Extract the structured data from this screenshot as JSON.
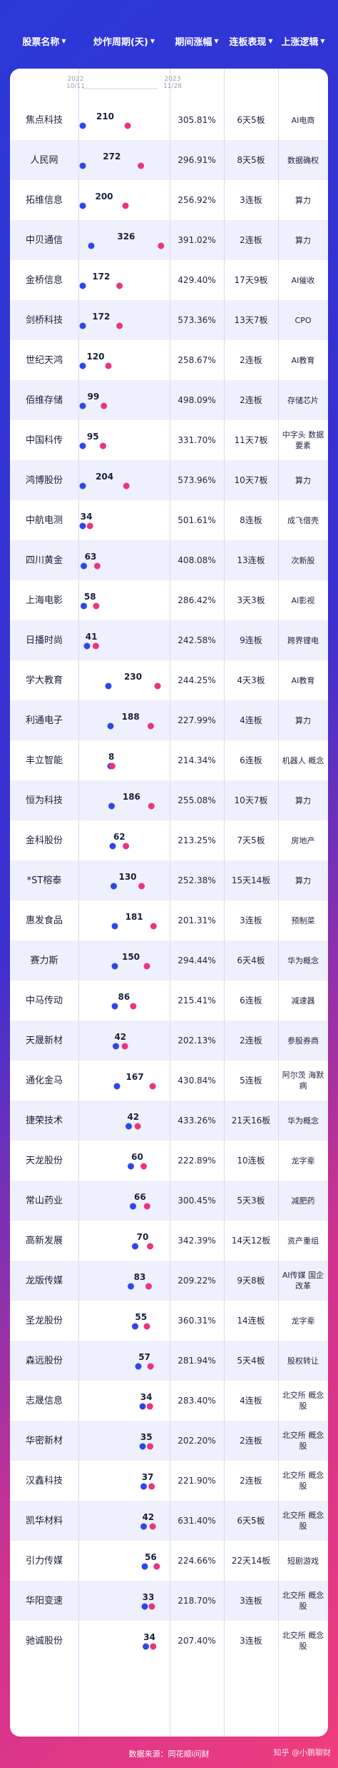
{
  "header": {
    "col_name": "股票名称",
    "col_period": "炒作周期(天)",
    "col_gain": "期间涨幅",
    "col_board": "连板表现",
    "col_logic": "上涨逻辑",
    "sort_icon": "triangle-down-icon"
  },
  "year_marks": {
    "start_year": "2022",
    "start_date": "10/11",
    "end_year": "2023",
    "end_date": "11/28"
  },
  "footer": {
    "source": "数据来源：同花顺i问财",
    "watermark": "知乎 @小鹏聊财"
  },
  "colors": {
    "start_dot": "#2f46e8",
    "end_dot": "#e8357d",
    "bar_start": "#3a4be6",
    "bar_end": "#e43a80"
  },
  "chart_data": {
    "type": "table",
    "title": "",
    "columns": [
      "股票名称",
      "炒作周期(天)",
      "期间涨幅",
      "连板表现",
      "上涨逻辑"
    ],
    "rows": [
      {
        "name": "焦点科技",
        "days": 210,
        "start": 0,
        "gain": "305.81%",
        "board": "6天5板",
        "logic": "AI电商"
      },
      {
        "name": "人民网",
        "days": 272,
        "start": 0,
        "gain": "296.91%",
        "board": "8天5板",
        "logic": "数据确权"
      },
      {
        "name": "拓维信息",
        "days": 200,
        "start": 0,
        "gain": "256.92%",
        "board": "3连板",
        "logic": "算力"
      },
      {
        "name": "中贝通信",
        "days": 326,
        "start": 40,
        "gain": "391.02%",
        "board": "2连板",
        "logic": "算力"
      },
      {
        "name": "金桥信息",
        "days": 172,
        "start": 0,
        "gain": "429.40%",
        "board": "17天9板",
        "logic": "AI催收"
      },
      {
        "name": "剑桥科技",
        "days": 172,
        "start": 0,
        "gain": "573.36%",
        "board": "13天7板",
        "logic": "CPO"
      },
      {
        "name": "世纪天鸿",
        "days": 120,
        "start": 0,
        "gain": "258.67%",
        "board": "2连板",
        "logic": "AI教育"
      },
      {
        "name": "佰维存储",
        "days": 99,
        "start": 0,
        "gain": "498.09%",
        "board": "2连板",
        "logic": "存储芯片"
      },
      {
        "name": "中国科传",
        "days": 95,
        "start": 0,
        "gain": "331.70%",
        "board": "11天7板",
        "logic": "中字头 数据要素"
      },
      {
        "name": "鸿博股份",
        "days": 204,
        "start": 0,
        "gain": "573.96%",
        "board": "10天7板",
        "logic": "算力"
      },
      {
        "name": "中航电测",
        "days": 34,
        "start": 0,
        "gain": "501.61%",
        "board": "8连板",
        "logic": "成飞借壳"
      },
      {
        "name": "四川黄金",
        "days": 63,
        "start": 5,
        "gain": "408.08%",
        "board": "13连板",
        "logic": "次新股"
      },
      {
        "name": "上海电影",
        "days": 58,
        "start": 5,
        "gain": "286.42%",
        "board": "3天3板",
        "logic": "AI影视"
      },
      {
        "name": "日播时尚",
        "days": 41,
        "start": 20,
        "gain": "242.58%",
        "board": "9连板",
        "logic": "跨界锂电"
      },
      {
        "name": "学大教育",
        "days": 230,
        "start": 120,
        "gain": "244.25%",
        "board": "4天3板",
        "logic": "AI教育"
      },
      {
        "name": "利通电子",
        "days": 188,
        "start": 130,
        "gain": "227.99%",
        "board": "4连板",
        "logic": "算力"
      },
      {
        "name": "丰立智能",
        "days": 8,
        "start": 130,
        "gain": "214.34%",
        "board": "6连板",
        "logic": "机器人 概念"
      },
      {
        "name": "恒为科技",
        "days": 186,
        "start": 135,
        "gain": "255.08%",
        "board": "10天7板",
        "logic": "算力"
      },
      {
        "name": "金科股份",
        "days": 62,
        "start": 140,
        "gain": "213.25%",
        "board": "7天5板",
        "logic": "房地产"
      },
      {
        "name": "*ST榕泰",
        "days": 130,
        "start": 145,
        "gain": "252.38%",
        "board": "15天14板",
        "logic": "算力"
      },
      {
        "name": "惠发食品",
        "days": 181,
        "start": 150,
        "gain": "201.31%",
        "board": "3连板",
        "logic": "预制菜"
      },
      {
        "name": "赛力斯",
        "days": 150,
        "start": 150,
        "gain": "294.44%",
        "board": "6天4板",
        "logic": "华为概念"
      },
      {
        "name": "中马传动",
        "days": 86,
        "start": 150,
        "gain": "215.41%",
        "board": "6连板",
        "logic": "减速器"
      },
      {
        "name": "天晟新材",
        "days": 42,
        "start": 155,
        "gain": "202.13%",
        "board": "2连板",
        "logic": "参股券商"
      },
      {
        "name": "通化金马",
        "days": 167,
        "start": 160,
        "gain": "430.84%",
        "board": "5连板",
        "logic": "阿尔茨 海默病"
      },
      {
        "name": "捷荣技术",
        "days": 42,
        "start": 215,
        "gain": "433.26%",
        "board": "21天16板",
        "logic": "华为概念"
      },
      {
        "name": "天龙股份",
        "days": 60,
        "start": 225,
        "gain": "222.89%",
        "board": "10连板",
        "logic": "龙字辈"
      },
      {
        "name": "常山药业",
        "days": 66,
        "start": 235,
        "gain": "300.45%",
        "board": "5天3板",
        "logic": "减肥药"
      },
      {
        "name": "高新发展",
        "days": 70,
        "start": 245,
        "gain": "342.39%",
        "board": "14天12板",
        "logic": "资产重组"
      },
      {
        "name": "龙版传媒",
        "days": 83,
        "start": 225,
        "gain": "209.22%",
        "board": "9天8板",
        "logic": "AI传媒 国企改革"
      },
      {
        "name": "圣龙股份",
        "days": 55,
        "start": 245,
        "gain": "360.31%",
        "board": "14连板",
        "logic": "龙字辈"
      },
      {
        "name": "森远股份",
        "days": 57,
        "start": 260,
        "gain": "281.94%",
        "board": "5天4板",
        "logic": "股权转让"
      },
      {
        "name": "志晟信息",
        "days": 34,
        "start": 280,
        "gain": "283.40%",
        "board": "4连板",
        "logic": "北交所 概念股"
      },
      {
        "name": "华密新材",
        "days": 35,
        "start": 280,
        "gain": "202.20%",
        "board": "2连板",
        "logic": "北交所 概念股"
      },
      {
        "name": "汉鑫科技",
        "days": 37,
        "start": 285,
        "gain": "221.90%",
        "board": "2连板",
        "logic": "北交所 概念股"
      },
      {
        "name": "凯华材料",
        "days": 42,
        "start": 285,
        "gain": "631.40%",
        "board": "6天5板",
        "logic": "北交所 概念股"
      },
      {
        "name": "引力传媒",
        "days": 56,
        "start": 290,
        "gain": "224.66%",
        "board": "22天14板",
        "logic": "短剧游戏"
      },
      {
        "name": "华阳变速",
        "days": 33,
        "start": 290,
        "gain": "218.70%",
        "board": "3连板",
        "logic": "北交所 概念股"
      },
      {
        "name": "驰诚股份",
        "days": 34,
        "start": 295,
        "gain": "207.40%",
        "board": "3连板",
        "logic": "北交所 概念股"
      }
    ],
    "x_domain": [
      0,
      400
    ],
    "xlabel": "",
    "ylabel": ""
  }
}
